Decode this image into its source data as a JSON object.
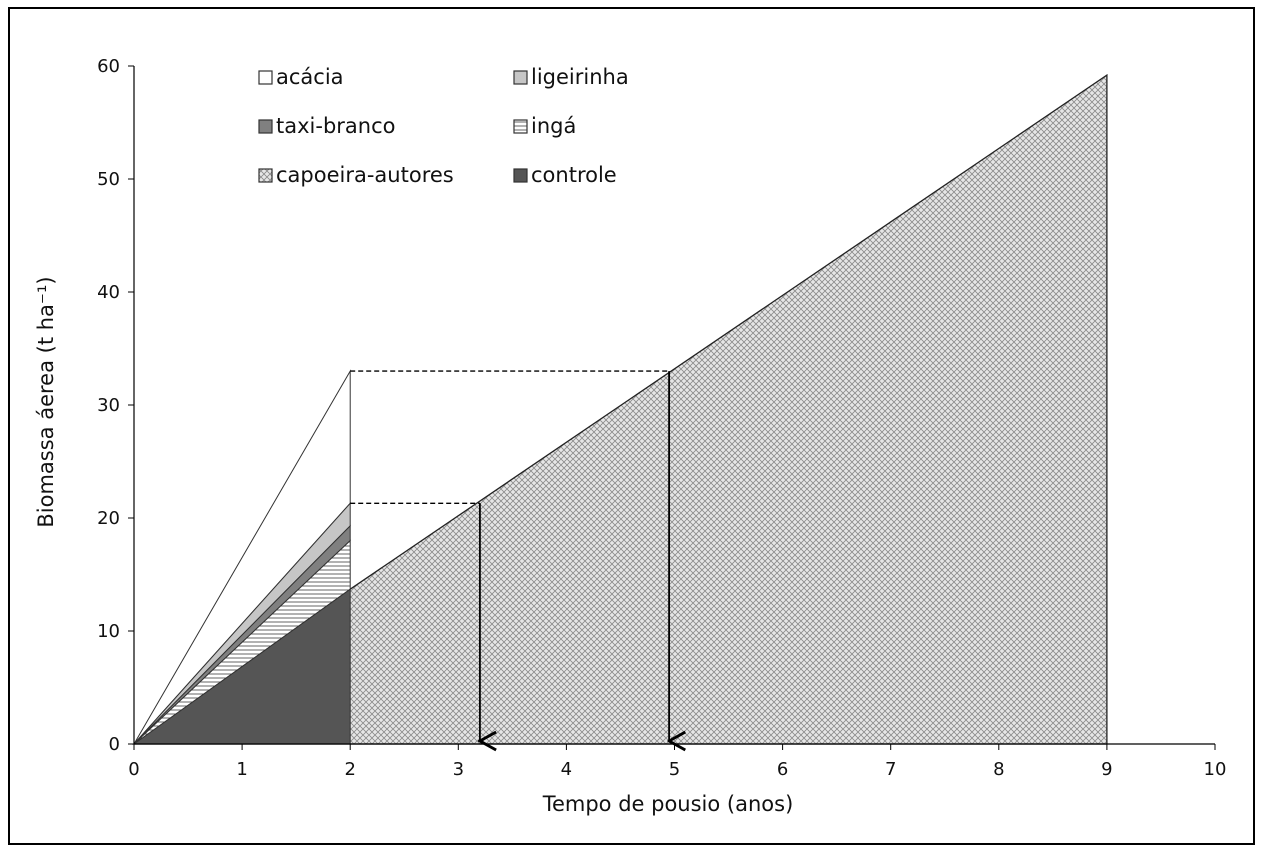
{
  "chart_data": {
    "type": "area",
    "title": "",
    "xlabel": "Tempo de pousio (anos)",
    "ylabel": "Biomassa áerea (t ha⁻¹)",
    "xlim": [
      0,
      10
    ],
    "ylim": [
      0,
      60
    ],
    "xticks": [
      0,
      1,
      2,
      3,
      4,
      5,
      6,
      7,
      8,
      9,
      10
    ],
    "yticks": [
      0,
      10,
      20,
      30,
      40,
      50,
      60
    ],
    "grid": false,
    "legend_position": "top-left",
    "legend": [
      {
        "label": "acácia",
        "pattern": "white"
      },
      {
        "label": "ligeirinha",
        "pattern": "light-gray"
      },
      {
        "label": "taxi-branco",
        "pattern": "mid-gray"
      },
      {
        "label": "ingá",
        "pattern": "horizontal-lines"
      },
      {
        "label": "capoeira-autores",
        "pattern": "crosshatch"
      },
      {
        "label": "controle",
        "pattern": "dark-gray"
      }
    ],
    "series": [
      {
        "name": "controle",
        "x": [
          0,
          2
        ],
        "y": [
          0,
          13.7
        ]
      },
      {
        "name": "ingá",
        "x": [
          0,
          2
        ],
        "y": [
          0,
          18.0
        ]
      },
      {
        "name": "taxi-branco",
        "x": [
          0,
          2
        ],
        "y": [
          0,
          19.3
        ]
      },
      {
        "name": "ligeirinha",
        "x": [
          0,
          2
        ],
        "y": [
          0,
          21.3
        ]
      },
      {
        "name": "acácia",
        "x": [
          0,
          2
        ],
        "y": [
          0,
          33.0
        ]
      },
      {
        "name": "capoeira-autores",
        "x": [
          0,
          2,
          9
        ],
        "y": [
          0,
          13.7,
          59.2
        ]
      }
    ],
    "annotations": [
      {
        "type": "dashed-guide",
        "from": [
          2,
          21.3
        ],
        "to": [
          3.2,
          21.3
        ],
        "arrow_down_to_x": 3.2
      },
      {
        "type": "dashed-guide",
        "from": [
          2,
          33.0
        ],
        "to": [
          4.95,
          33.0
        ],
        "arrow_down_to_x": 4.95
      }
    ],
    "colors": {
      "controle": "#555555",
      "taxi-branco": "#808080",
      "ligeirinha": "#c6c6c6",
      "acácia": "#ffffff",
      "axis": "#000000"
    }
  }
}
